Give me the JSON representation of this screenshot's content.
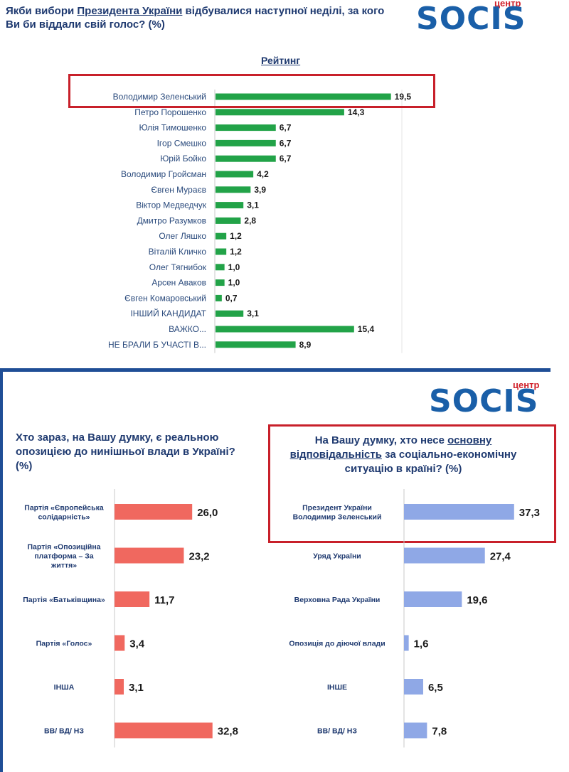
{
  "top": {
    "question_part1": "Якби вибори ",
    "question_underlined": "Президента України",
    "question_part2": " відбувалися наступної неділі, за кого Ви би віддали свій голос? (%)",
    "rating_label": "Рейтинг",
    "logo_text": "SOCIS",
    "logo_small": "центр"
  },
  "bottom": {
    "logo_text": "SOCIS",
    "logo_small": "центр",
    "left_question": "Хто зараз, на Вашу думку, є реальною опозицією до нинішньої влади в Україні? (%)",
    "right_question_part1": "На Вашу думку, хто несе ",
    "right_question_underlined": "основну відповідальність",
    "right_question_part2": " за соціально-економічну ситуацію в країні? (%)"
  },
  "colors": {
    "green": "#22a348",
    "salmon": "#f0685f",
    "periwinkle": "#8fa8e6",
    "frame_red": "#c8202a",
    "navy": "#1f3a70"
  },
  "chart_data": [
    {
      "type": "bar",
      "orientation": "horizontal",
      "title": "Рейтинг",
      "categories": [
        "Володимир Зеленський",
        "Петро Порошенко",
        "Юлія Тимошенко",
        "Ігор Смешко",
        "Юрій Бойко",
        "Володимир Гройсман",
        "Євген Мураєв",
        "Віктор Медведчук",
        "Дмитро Разумков",
        "Олег Ляшко",
        "Віталій Кличко",
        "Олег Тягнибок",
        "Арсен Аваков",
        "Євген Комаровський",
        "ІНШИЙ КАНДИДАТ",
        "ВАЖКО...",
        "НЕ БРАЛИ Б УЧАСТІ В..."
      ],
      "values": [
        19.5,
        14.3,
        6.7,
        6.7,
        6.7,
        4.2,
        3.9,
        3.1,
        2.8,
        1.2,
        1.2,
        1.0,
        1.0,
        0.7,
        3.1,
        15.4,
        8.9
      ],
      "labels": [
        "19,5",
        "14,3",
        "6,7",
        "6,7",
        "6,7",
        "4,2",
        "3,9",
        "3,1",
        "2,8",
        "1,2",
        "1,2",
        "1,0",
        "1,0",
        "0,7",
        "3,1",
        "15,4",
        "8,9"
      ],
      "xlim": [
        0,
        22
      ],
      "grid": false
    },
    {
      "type": "bar",
      "orientation": "horizontal",
      "categories": [
        "Партія «Європейська солідарність»",
        "Партія «Опозиційна платформа – За життя»",
        "Партія «Батьківщина»",
        "Партія «Голос»",
        "ІНША",
        "ВВ/ ВД/ НЗ"
      ],
      "values": [
        26.0,
        23.2,
        11.7,
        3.4,
        3.1,
        32.8
      ],
      "labels": [
        "26,0",
        "23,2",
        "11,7",
        "3,4",
        "3,1",
        "32,8"
      ],
      "xlim": [
        0,
        45
      ],
      "grid": false
    },
    {
      "type": "bar",
      "orientation": "horizontal",
      "categories": [
        "Президент України Володимир Зеленський",
        "Уряд України",
        "Верховна Рада України",
        "Опозиція до діючої влади",
        "ІНШЕ",
        "ВВ/ ВД/ НЗ"
      ],
      "values": [
        37.3,
        27.4,
        19.6,
        1.6,
        6.5,
        7.8
      ],
      "labels": [
        "37,3",
        "27,4",
        "19,6",
        "1,6",
        "6,5",
        "7,8"
      ],
      "xlim": [
        0,
        45
      ],
      "grid": false
    }
  ]
}
